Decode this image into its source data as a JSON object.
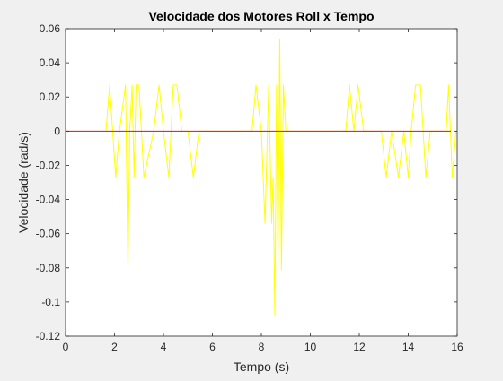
{
  "chart_data": {
    "type": "line",
    "title": "Velocidade dos Motores Roll x Tempo",
    "xlabel": "Tempo (s)",
    "ylabel": "Velocidade (rad/s)",
    "xlim": [
      0,
      16
    ],
    "ylim": [
      -0.12,
      0.06
    ],
    "xticks": [
      0,
      2,
      4,
      6,
      8,
      10,
      12,
      14,
      16
    ],
    "xtick_labels": [
      "0",
      "2",
      "4",
      "6",
      "8",
      "10",
      "12",
      "14",
      "16"
    ],
    "yticks": [
      0.06,
      0.04,
      0.02,
      0,
      -0.02,
      -0.04,
      -0.06,
      -0.08,
      -0.1,
      -0.12
    ],
    "ytick_labels": [
      "0.06",
      "0.04",
      "0.02",
      "0",
      "-0.02",
      "-0.04",
      "-0.06",
      "-0.08",
      "-0.1",
      "-0.12"
    ],
    "grid": false,
    "series": [
      {
        "color": "#ffff00",
        "x": [
          1.65,
          1.8,
          2.05,
          2.2,
          2.45,
          2.55,
          2.62,
          2.72,
          2.8,
          2.88,
          3.0,
          3.2,
          3.6,
          3.82,
          4.0,
          4.22,
          4.4,
          4.55,
          4.75,
          5.0,
          5.22,
          5.45,
          5.6,
          7.62,
          7.78,
          8.0,
          8.15,
          8.3,
          8.42,
          8.48,
          8.55,
          8.62,
          8.68,
          8.75,
          8.82,
          8.9,
          9.0,
          9.15,
          9.3,
          11.45,
          11.6,
          11.78,
          11.95,
          12.18,
          12.4,
          12.9,
          13.1,
          13.32,
          13.6,
          13.82,
          14.0,
          14.12,
          14.3,
          14.5,
          14.72,
          14.9,
          15.55,
          15.65,
          15.8,
          15.95,
          16.0
        ],
        "y": [
          0,
          0.027,
          -0.027,
          0,
          0.027,
          -0.081,
          0,
          0.027,
          -0.027,
          0.027,
          0.027,
          -0.027,
          0,
          0.027,
          0,
          -0.027,
          0.027,
          0.027,
          0,
          0,
          -0.027,
          0,
          0,
          0,
          0.027,
          0,
          -0.054,
          0.027,
          -0.054,
          -0.027,
          -0.108,
          0.027,
          -0.081,
          0.054,
          -0.081,
          0.027,
          0,
          0,
          0,
          0,
          0.027,
          0,
          0.027,
          0,
          0,
          0,
          -0.027,
          0,
          -0.027,
          0,
          -0.027,
          0,
          0.027,
          0.027,
          -0.027,
          0,
          0,
          0.027,
          -0.027,
          0,
          0
        ]
      },
      {
        "color": "#ff0000",
        "x": [
          0,
          15.75
        ],
        "y": [
          0,
          0
        ]
      }
    ]
  }
}
